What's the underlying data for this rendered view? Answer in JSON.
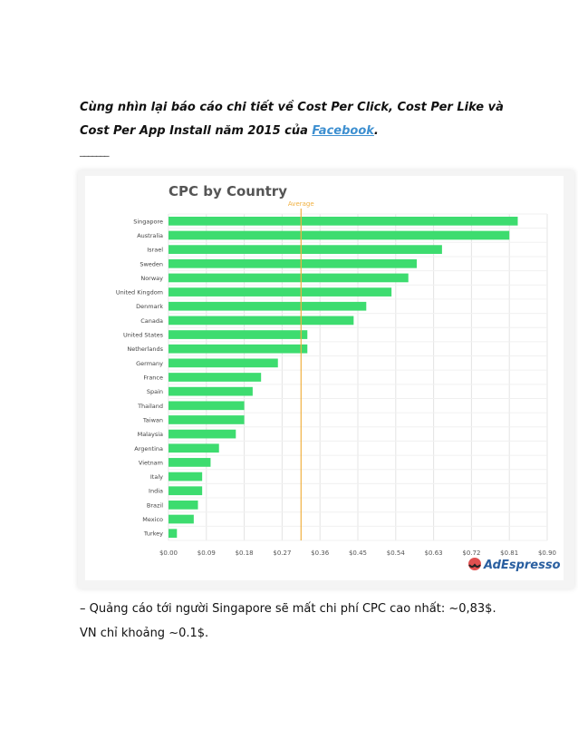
{
  "intro": {
    "text_before_link": "Cùng nhìn lại báo cáo chi tiết về Cost Per Click, Cost Per Like và Cost Per App Install năm 2015 của ",
    "link_label": "Facebook",
    "text_after_link": "."
  },
  "divider": "_______",
  "caption": "– Quảng cáo tới người Singapore sẽ mất chi phí CPC cao nhất: ~0,83$. VN chỉ khoảng ~0.1$.",
  "brand": {
    "logo_text": "AdEspresso"
  },
  "chart_data": {
    "type": "bar",
    "orientation": "horizontal",
    "title": "CPC by Country",
    "categories": [
      "Singapore",
      "Australia",
      "Israel",
      "Sweden",
      "Norway",
      "United Kingdom",
      "Denmark",
      "Canada",
      "United States",
      "Netherlands",
      "Germany",
      "France",
      "Spain",
      "Thailand",
      "Taiwan",
      "Malaysia",
      "Argentina",
      "Vietnam",
      "Italy",
      "India",
      "Brazil",
      "Mexico",
      "Turkey"
    ],
    "values": [
      0.83,
      0.81,
      0.65,
      0.59,
      0.57,
      0.53,
      0.47,
      0.44,
      0.33,
      0.33,
      0.26,
      0.22,
      0.2,
      0.18,
      0.18,
      0.16,
      0.12,
      0.1,
      0.08,
      0.08,
      0.07,
      0.06,
      0.02
    ],
    "xlim": [
      0,
      0.9
    ],
    "xticks": [
      "$0.00",
      "$0.09",
      "$0.18",
      "$0.27",
      "$0.36",
      "$0.45",
      "$0.54",
      "$0.63",
      "$0.72",
      "$0.81",
      "$0.90"
    ],
    "average": {
      "label": "Average",
      "value": 0.315
    },
    "grid": true,
    "colors": {
      "bar": "#3ddc6f",
      "average": "#f0b040",
      "title": "#555555"
    }
  }
}
